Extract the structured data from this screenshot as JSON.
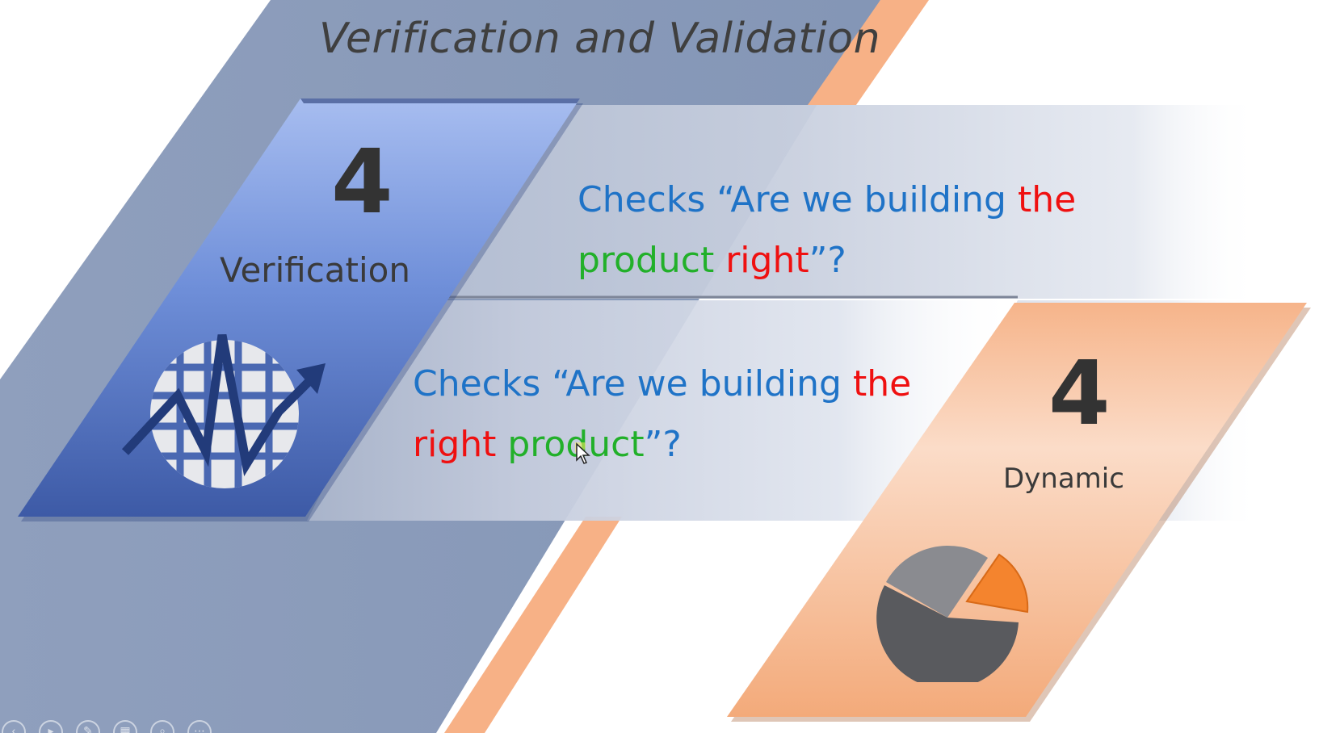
{
  "slide": {
    "title": "Verification and Validation",
    "verification": {
      "number": "4",
      "label": "Verification",
      "icon": "globe-chart-icon"
    },
    "dynamic": {
      "number": "4",
      "label": "Dynamic",
      "icon": "pie-chart-icon"
    },
    "question1": {
      "line1": [
        {
          "text": "Checks “Are we building ",
          "color": "blue"
        },
        {
          "text": "the",
          "color": "red"
        }
      ],
      "line2": [
        {
          "text": "product ",
          "color": "green"
        },
        {
          "text": "right",
          "color": "red"
        },
        {
          "text": "”?",
          "color": "blue"
        }
      ]
    },
    "question2": {
      "line1": [
        {
          "text": "Checks “Are we building ",
          "color": "blue"
        },
        {
          "text": "the",
          "color": "red"
        }
      ],
      "line2": [
        {
          "text": "right ",
          "color": "red"
        },
        {
          "text": "product",
          "color": "green"
        },
        {
          "text": "”?",
          "color": "blue"
        }
      ]
    }
  },
  "colors": {
    "blue_text": "#1f73c7",
    "red_text": "#ef1010",
    "green_text": "#22b02a",
    "band_gray_blue": "#8b9bb8",
    "accent_orange": "#f7b186",
    "card_blue": "#4a6fbf",
    "card_peach": "#f7c3a1"
  },
  "controls": [
    "previous-icon",
    "play-icon",
    "pen-icon",
    "slides-icon",
    "zoom-icon",
    "more-icon"
  ]
}
